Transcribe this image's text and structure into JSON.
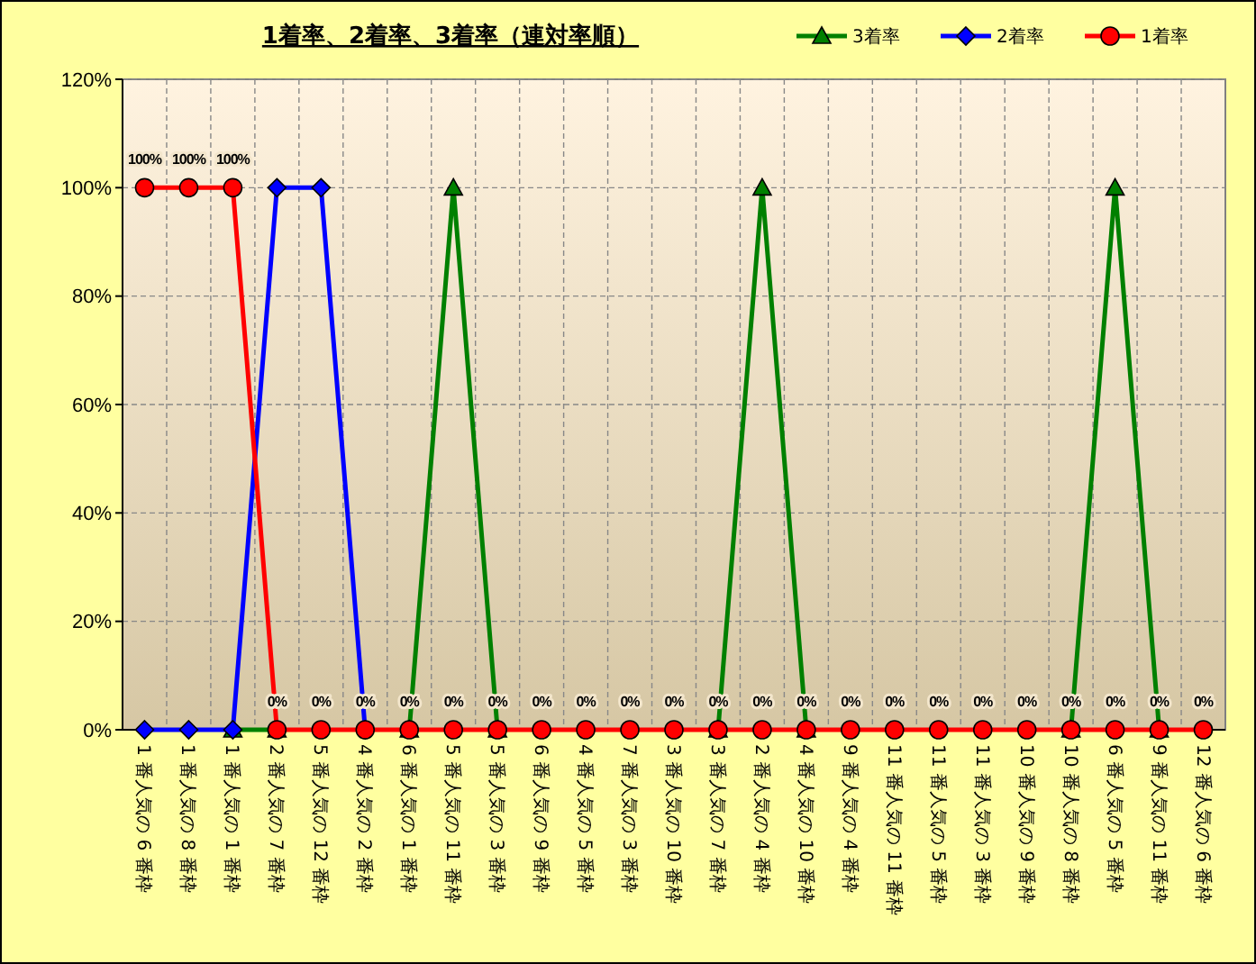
{
  "chart_data": {
    "type": "line",
    "title": "1着率、2着率、3着率（連対率順）",
    "categories": [
      "1 番人気の 6 番枠",
      "1 番人気の 8 番枠",
      "1 番人気の 1 番枠",
      "2 番人気の 7 番枠",
      "5 番人気の 12 番枠",
      "4 番人気の 2 番枠",
      "6 番人気の 1 番枠",
      "5 番人気の 11 番枠",
      "5 番人気の 3 番枠",
      "6 番人気の 9 番枠",
      "4 番人気の 5 番枠",
      "7 番人気の 3 番枠",
      "3 番人気の 10 番枠",
      "3 番人気の 7 番枠",
      "2 番人気の 4 番枠",
      "4 番人気の 10 番枠",
      "9 番人気の 4 番枠",
      "11 番人気の 11 番枠",
      "11 番人気の 5 番枠",
      "11 番人気の 3 番枠",
      "10 番人気の 9 番枠",
      "10 番人気の 8 番枠",
      "6 番人気の 5 番枠",
      "9 番人気の 11 番枠",
      "12 番人気の 6 番枠"
    ],
    "series": [
      {
        "name": "3着率",
        "color": "#008000",
        "marker": "triangle",
        "values": [
          null,
          null,
          0,
          0,
          null,
          null,
          0,
          100,
          0,
          null,
          null,
          null,
          null,
          0,
          100,
          0,
          null,
          null,
          null,
          null,
          null,
          0,
          100,
          0,
          null
        ]
      },
      {
        "name": "2着率",
        "color": "#0000ff",
        "marker": "diamond",
        "values": [
          0,
          0,
          0,
          100,
          100,
          0,
          null,
          null,
          null,
          null,
          null,
          null,
          null,
          null,
          null,
          null,
          null,
          null,
          null,
          null,
          null,
          null,
          null,
          null,
          null
        ]
      },
      {
        "name": "1着率",
        "color": "#ff0000",
        "marker": "circle",
        "values": [
          100,
          100,
          100,
          0,
          0,
          0,
          0,
          0,
          0,
          0,
          0,
          0,
          0,
          0,
          0,
          0,
          0,
          0,
          0,
          0,
          0,
          0,
          0,
          0,
          0
        ],
        "value_labels": [
          "100%",
          "100%",
          "100%",
          "0%",
          "0%",
          "0%",
          "0%",
          "0%",
          "0%",
          "0%",
          "0%",
          "0%",
          "0%",
          "0%",
          "0%",
          "0%",
          "0%",
          "0%",
          "0%",
          "0%",
          "0%",
          "0%",
          "0%",
          "0%",
          "0%"
        ]
      }
    ],
    "ylim": [
      0,
      120
    ],
    "yticks": [
      {
        "value": 0,
        "label": "0%"
      },
      {
        "value": 20,
        "label": "20%"
      },
      {
        "value": 40,
        "label": "40%"
      },
      {
        "value": 60,
        "label": "60%"
      },
      {
        "value": 80,
        "label": "80%"
      },
      {
        "value": 100,
        "label": "100%"
      },
      {
        "value": 120,
        "label": "120%"
      }
    ],
    "grid": true,
    "legend": "top right",
    "line_style": "solid"
  }
}
